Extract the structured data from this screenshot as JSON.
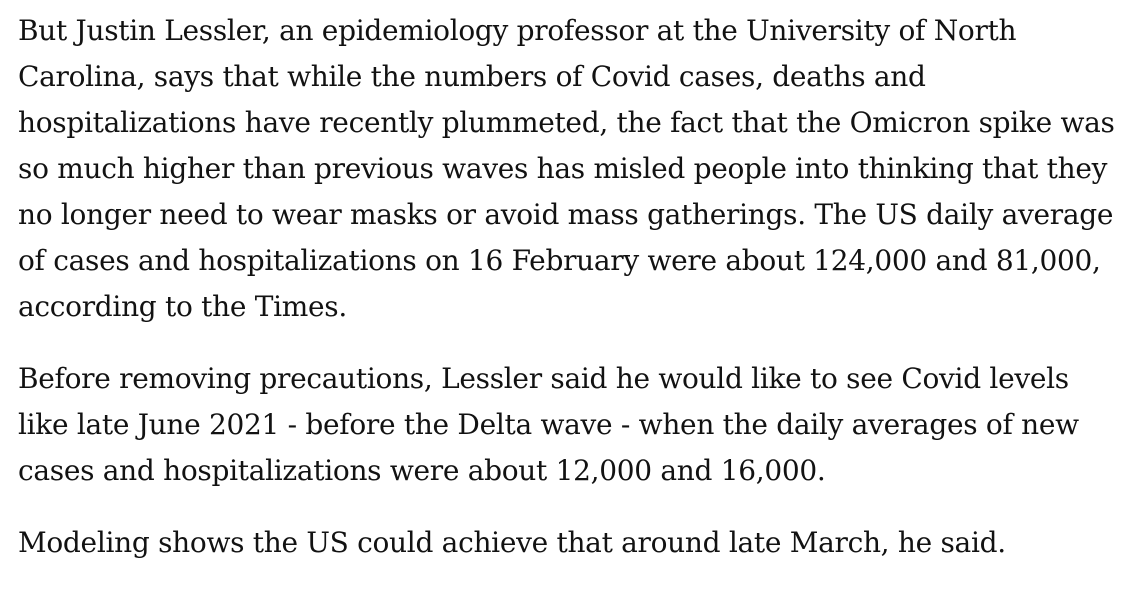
{
  "article": {
    "paragraphs": [
      "But Justin Lessler, an epidemiology professor at the University of North Carolina, says that while the numbers of Covid cases, deaths and hospitalizations have recently plummeted, the fact that the Omicron spike was so much higher than previous waves has misled people into thinking that they no longer need to wear masks or avoid mass gatherings. The US daily average of cases and hospitalizations on 16 February were about 124,000 and 81,000, according to the Times.",
      "Before removing precautions, Lessler said he would like to see Covid levels like late June 2021 - before the Delta wave - when the daily averages of new cases and hospitalizations were about 12,000 and 16,000.",
      "Modeling shows the US could achieve that around late March, he said."
    ]
  }
}
